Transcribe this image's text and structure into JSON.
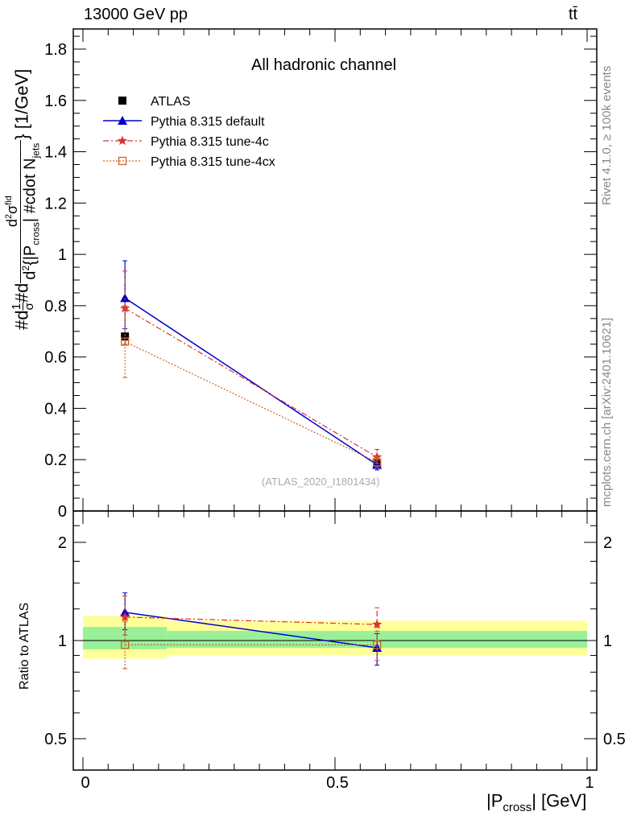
{
  "header": {
    "energy_label": "13000 GeV pp",
    "process_label": "tt̄"
  },
  "side_labels": {
    "rivet": "Rivet 4.1.0, ≥ 100k events",
    "mcplots": "mcplots.cern.ch [arXiv:2401.10621]"
  },
  "chart_data": {
    "type": "line",
    "title": "All hadronic channel",
    "watermark": "(ATLAS_2020_I1801434)",
    "ylabel": "#d¹/σ#d d²σᶦⁿᵈ / d²{|P_cross| #cdot N_jets} [1/GeV]",
    "ylabel_parts": {
      "a": "#d",
      "b": "1",
      "c": "σ",
      "d": "#d",
      "e": "d",
      "f": "2",
      "g": "σ",
      "h": "fid",
      "i": "d",
      "j": "2",
      "k": "{|P",
      "l": "cross",
      "m": "| #cdot N",
      "n": "jets",
      "o": "} [1/GeV]"
    },
    "xlabel_parts": {
      "a": "|P",
      "b": "cross",
      "c": "| [GeV]"
    },
    "ylim": [
      0,
      1.88
    ],
    "xlim": [
      -0.01,
      1.01
    ],
    "yticks": [
      "0.2",
      "0.4",
      "0.6",
      "0.8",
      "1",
      "1.2",
      "1.4",
      "1.6",
      "1.8"
    ],
    "ytick_values": [
      0.2,
      0.4,
      0.6,
      0.8,
      1.0,
      1.2,
      1.4,
      1.6,
      1.8
    ],
    "ytick_zero": "0",
    "x": [
      0.0833,
      0.5833
    ],
    "bin_edges": [
      0.0,
      0.1667,
      1.0
    ],
    "series": [
      {
        "name": "ATLAS",
        "values": [
          0.68,
          0.185
        ],
        "err_low": [
          0.0,
          0.0
        ],
        "err_high": [
          0.0,
          0.0
        ],
        "color": "#000000",
        "marker": "square"
      },
      {
        "name": "Pythia 8.315 default",
        "values": [
          0.83,
          0.18
        ],
        "err_low": [
          0.12,
          0.02
        ],
        "err_high": [
          0.145,
          0.02
        ],
        "color": "#0000cc",
        "marker": "triangle"
      },
      {
        "name": "Pythia 8.315 tune-4c",
        "values": [
          0.79,
          0.21
        ],
        "err_low": [
          0.14,
          0.025
        ],
        "err_high": [
          0.145,
          0.03
        ],
        "color": "#dd3333",
        "marker": "star"
      },
      {
        "name": "Pythia 8.315 tune-4cx",
        "values": [
          0.66,
          0.19
        ],
        "err_low": [
          0.14,
          0.02
        ],
        "err_high": [
          0.14,
          0.02
        ],
        "color": "#cc6622",
        "marker": "open-square"
      }
    ],
    "ratio": {
      "ylabel": "Ratio to ATLAS",
      "yticks": [
        "0.5",
        "1",
        "2"
      ],
      "ytick_values": [
        0.5,
        1.0,
        2.0
      ],
      "ylim": [
        0.4,
        2.4
      ],
      "xticks": [
        "0",
        "0.5",
        "1"
      ],
      "xtick_values": [
        0,
        0.5,
        1
      ],
      "band_green": [
        [
          0.94,
          1.1
        ],
        [
          0.95,
          1.07
        ]
      ],
      "band_yellow": [
        [
          0.88,
          1.19
        ],
        [
          0.9,
          1.15
        ]
      ],
      "series": [
        {
          "name": "Pythia 8.315 default",
          "values": [
            1.22,
            0.95
          ],
          "err_low": [
            0.14,
            0.11
          ],
          "err_high": [
            0.18,
            0.1
          ]
        },
        {
          "name": "Pythia 8.315 tune-4c",
          "values": [
            1.18,
            1.12
          ],
          "err_low": [
            0.14,
            0.12
          ],
          "err_high": [
            0.19,
            0.14
          ]
        },
        {
          "name": "Pythia 8.315 tune-4cx",
          "values": [
            0.97,
            0.97
          ],
          "err_low": [
            0.15,
            0.1
          ],
          "err_high": [
            0.17,
            0.1
          ]
        }
      ]
    }
  }
}
